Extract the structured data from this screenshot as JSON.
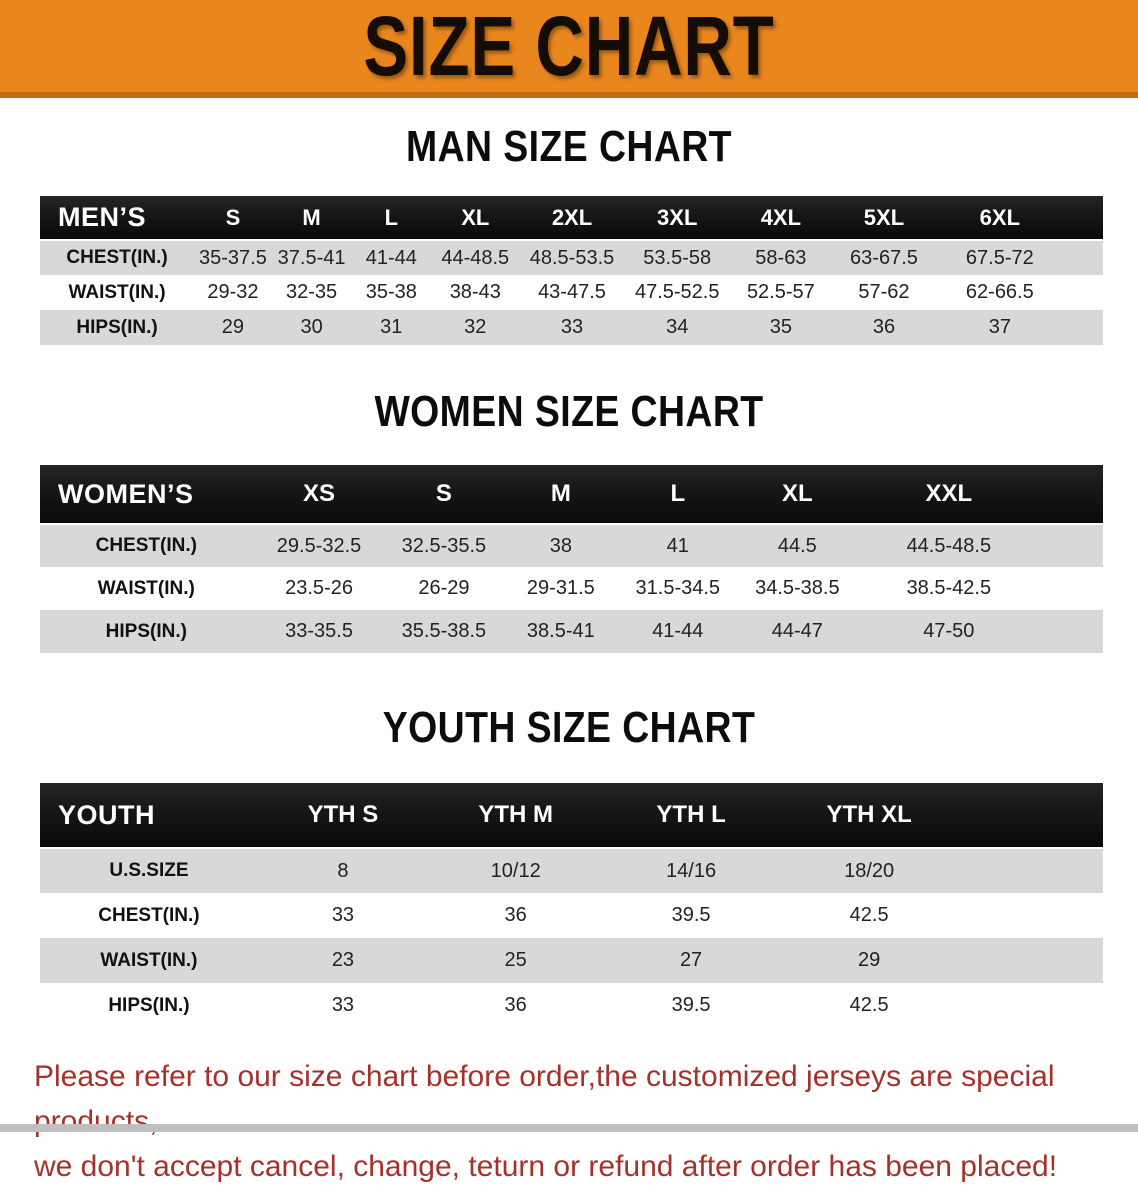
{
  "banner": {
    "title": "SIZE CHART"
  },
  "men": {
    "heading": "MAN SIZE CHART",
    "header": {
      "label": "MEN’S",
      "sizes": [
        "S",
        "M",
        "L",
        "XL",
        "2XL",
        "3XL",
        "4XL",
        "5XL",
        "6XL"
      ]
    },
    "rows": [
      {
        "label": "CHEST(IN.)",
        "values": [
          "35-37.5",
          "37.5-41",
          "41-44",
          "44-48.5",
          "48.5-53.5",
          "53.5-58",
          "58-63",
          "63-67.5",
          "67.5-72"
        ]
      },
      {
        "label": "WAIST(IN.)",
        "values": [
          "29-32",
          "32-35",
          "35-38",
          "38-43",
          "43-47.5",
          "47.5-52.5",
          "52.5-57",
          "57-62",
          "62-66.5"
        ]
      },
      {
        "label": "HIPS(IN.)",
        "values": [
          "29",
          "30",
          "31",
          "32",
          "33",
          "34",
          "35",
          "36",
          "37"
        ]
      }
    ]
  },
  "women": {
    "heading": "WOMEN SIZE CHART",
    "header": {
      "label": "WOMEN’S",
      "sizes": [
        "XS",
        "S",
        "M",
        "L",
        "XL",
        "XXL"
      ]
    },
    "rows": [
      {
        "label": "CHEST(IN.)",
        "values": [
          "29.5-32.5",
          "32.5-35.5",
          "38",
          "41",
          "44.5",
          "44.5-48.5"
        ]
      },
      {
        "label": "WAIST(IN.)",
        "values": [
          "23.5-26",
          "26-29",
          "29-31.5",
          "31.5-34.5",
          "34.5-38.5",
          "38.5-42.5"
        ]
      },
      {
        "label": "HIPS(IN.)",
        "values": [
          "33-35.5",
          "35.5-38.5",
          "38.5-41",
          "41-44",
          "44-47",
          "47-50"
        ]
      }
    ]
  },
  "youth": {
    "heading": "YOUTH SIZE CHART",
    "header": {
      "label": "YOUTH",
      "sizes": [
        "YTH S",
        "YTH M",
        "YTH L",
        "YTH XL"
      ]
    },
    "rows": [
      {
        "label": "U.S.SIZE",
        "values": [
          "8",
          "10/12",
          "14/16",
          "18/20"
        ]
      },
      {
        "label": "CHEST(IN.)",
        "values": [
          "33",
          "36",
          "39.5",
          "42.5"
        ]
      },
      {
        "label": "WAIST(IN.)",
        "values": [
          "23",
          "25",
          "27",
          "29"
        ]
      },
      {
        "label": "HIPS(IN.)",
        "values": [
          "33",
          "36",
          "39.5",
          "42.5"
        ]
      }
    ]
  },
  "footer": {
    "line1": "Please refer to our size chart before order,the customized jerseys are special products,",
    "line2": "we don't accept cancel, change, teturn or refund after order has been placed!"
  },
  "colors": {
    "banner_orange": "#e9861e",
    "header_black": "#161616",
    "row_gray": "#d8d8d8",
    "note_red": "#a4322a"
  }
}
